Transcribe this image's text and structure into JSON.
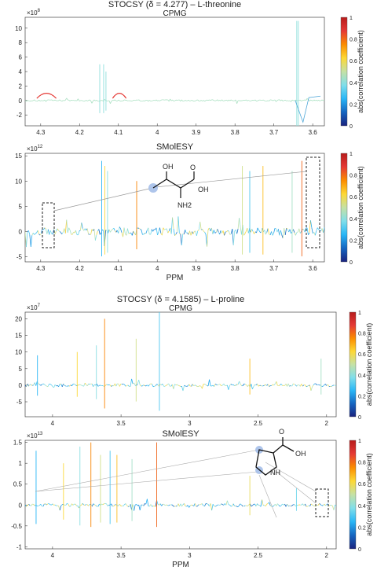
{
  "colormap": {
    "label": "abs(correlation coefficient)",
    "ticks": [
      "0",
      "0.2",
      "0.4",
      "0.6",
      "0.8",
      "1"
    ],
    "stops": [
      "#1a237e",
      "#1565c0",
      "#29b6f6",
      "#80deea",
      "#c5e1a5",
      "#fdd835",
      "#fb8c00",
      "#e53935",
      "#b71c1c"
    ]
  },
  "chart_data": [
    {
      "type": "line",
      "title": "STOCSY (δ = 4.277) – L-threonine",
      "subtitle": "CPMG",
      "exponent": "×10^8",
      "xlabel": "",
      "xlim": [
        4.34,
        3.57
      ],
      "ylim": [
        -3.5,
        11.5
      ],
      "xticks": [
        "4.3",
        "4.2",
        "4.1",
        "4",
        "3.9",
        "3.8",
        "3.7",
        "3.6"
      ],
      "yticks": [
        "-2",
        "0",
        "2",
        "4",
        "6",
        "8",
        "10"
      ]
    },
    {
      "type": "line",
      "title": "SMolESY",
      "exponent": "×10^12",
      "xlabel": "PPM",
      "xlim": [
        4.34,
        3.57
      ],
      "ylim": [
        -6,
        15.5
      ],
      "xticks": [
        "4.3",
        "4.2",
        "4.1",
        "4",
        "3.9",
        "3.8",
        "3.7",
        "3.6"
      ],
      "yticks": [
        "-5",
        "0",
        "5",
        "10",
        "15"
      ],
      "structure": {
        "labels": [
          "OH",
          "OH",
          "O",
          "NH2"
        ]
      }
    },
    {
      "type": "line",
      "title": "STOCSY (δ = 4.1585) – L-proline",
      "subtitle": "CPMG",
      "exponent": "×10^7",
      "xlabel": "",
      "xlim": [
        4.2,
        1.93
      ],
      "ylim": [
        -9.5,
        22
      ],
      "xticks": [
        "4",
        "3.5",
        "3",
        "2.5",
        "2"
      ],
      "yticks": [
        "-5",
        "0",
        "5",
        "10",
        "15",
        "20"
      ]
    },
    {
      "type": "line",
      "title": "SMolESY",
      "exponent": "×10^13",
      "xlabel": "PPM",
      "xlim": [
        4.2,
        1.93
      ],
      "ylim": [
        -1.05,
        1.55
      ],
      "xticks": [
        "4",
        "3.5",
        "3",
        "2.5",
        "2"
      ],
      "yticks": [
        "-1",
        "-0.5",
        "0",
        "0.5",
        "1",
        "1.5"
      ],
      "structure": {
        "labels": [
          "O",
          "OH",
          "NH"
        ]
      }
    }
  ]
}
